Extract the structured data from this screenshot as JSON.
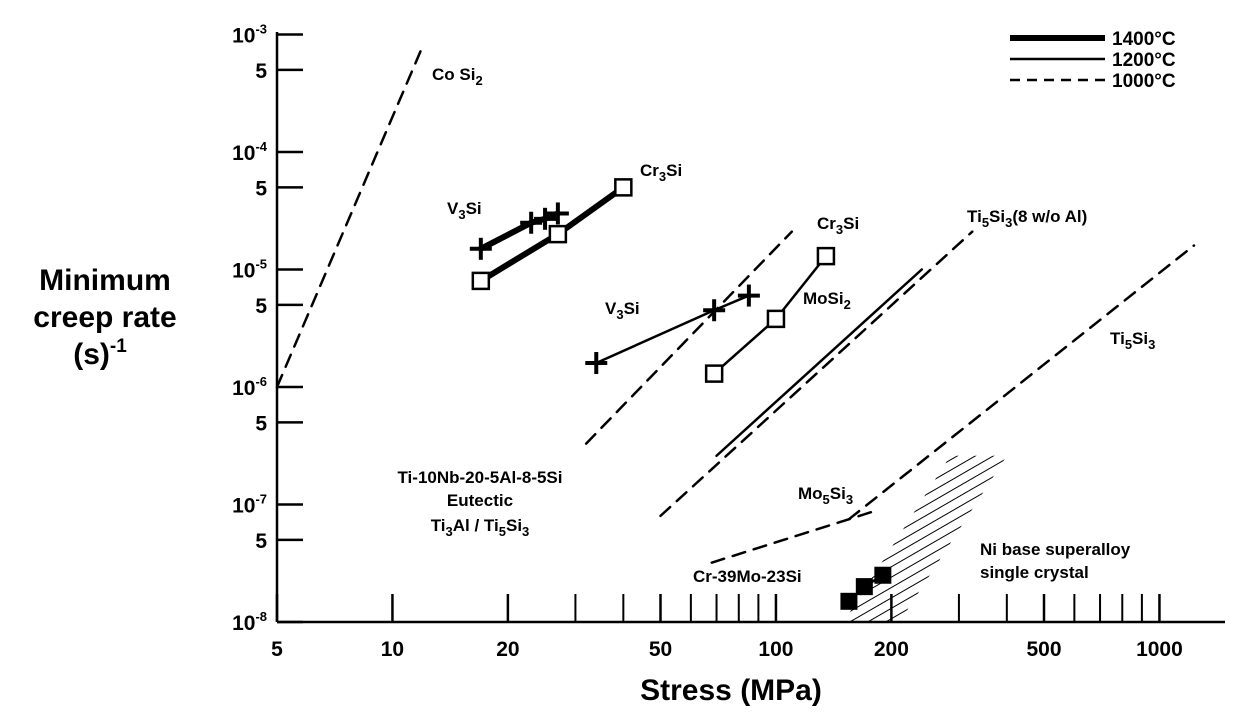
{
  "chart_data": {
    "type": "line",
    "xlabel": "Stress (MPa)",
    "ylabel_lines": [
      "Minimum",
      "creep rate",
      "(s)"
    ],
    "ylabel_sup": "-1",
    "xscale": "log",
    "yscale": "log",
    "xlim": [
      5,
      1500
    ],
    "ylim": [
      1e-08,
      0.001
    ],
    "x_ticks_major": [
      5,
      10,
      20,
      50,
      100,
      200,
      500,
      1000
    ],
    "x_ticks_minor": [
      30,
      40,
      60,
      70,
      80,
      90,
      300,
      400,
      600,
      700,
      800,
      900
    ],
    "x_tick_labels": [
      "5",
      "10",
      "20",
      "50",
      "100",
      "200",
      "500",
      "1000"
    ],
    "y_ticks": [
      {
        "value": 0.001,
        "base": "10",
        "exp": "-3"
      },
      {
        "value": 0.0005,
        "base": "5",
        "exp": ""
      },
      {
        "value": 0.0001,
        "base": "10",
        "exp": "-4"
      },
      {
        "value": 5e-05,
        "base": "5",
        "exp": ""
      },
      {
        "value": 1e-05,
        "base": "10",
        "exp": "-5"
      },
      {
        "value": 5e-06,
        "base": "5",
        "exp": ""
      },
      {
        "value": 1e-06,
        "base": "10",
        "exp": "-6"
      },
      {
        "value": 5e-07,
        "base": "5",
        "exp": ""
      },
      {
        "value": 1e-07,
        "base": "10",
        "exp": "-7"
      },
      {
        "value": 5e-08,
        "base": "5",
        "exp": ""
      },
      {
        "value": 1e-08,
        "base": "10",
        "exp": "-8"
      }
    ],
    "legend": {
      "position": "top-right",
      "entries": [
        {
          "label": "1400°C",
          "style": "thick"
        },
        {
          "label": "1200°C",
          "style": "solid"
        },
        {
          "label": "1000°C",
          "style": "dashed"
        }
      ]
    },
    "series": [
      {
        "label": "CoSi2",
        "temp": "1000°C",
        "style": "dashed",
        "marker": "none",
        "points": [
          [
            5,
            1e-06
          ],
          [
            12,
            0.0008
          ]
        ]
      },
      {
        "label": "V3Si",
        "temp": "1400°C",
        "style": "thick",
        "marker": "plus",
        "points": [
          [
            17,
            1.5e-05
          ],
          [
            23,
            2.5e-05
          ],
          [
            25,
            2.7e-05
          ],
          [
            27,
            3e-05
          ]
        ]
      },
      {
        "label": "Cr3Si",
        "temp": "1400°C",
        "style": "thick",
        "marker": "square",
        "points": [
          [
            17,
            8e-06
          ],
          [
            27,
            2e-05
          ],
          [
            40,
            5e-05
          ]
        ]
      },
      {
        "label": "V3Si",
        "temp": "1200°C",
        "style": "solid",
        "marker": "plus",
        "points": [
          [
            34,
            1.6e-06
          ],
          [
            69,
            4.5e-06
          ],
          [
            85,
            6e-06
          ]
        ]
      },
      {
        "label": "Cr3Si",
        "temp": "1200°C",
        "style": "solid",
        "marker": "square",
        "points": [
          [
            69,
            1.3e-06
          ],
          [
            100,
            3.8e-06
          ],
          [
            135,
            1.3e-05
          ]
        ]
      },
      {
        "label": "Ti-10Nb-20-5Al-8-5Si Eutectic Ti3Al / Ti5Si3",
        "temp": "1000°C",
        "style": "dashed",
        "marker": "none",
        "points": [
          [
            32,
            3.3e-07
          ],
          [
            110,
            2.1e-05
          ]
        ]
      },
      {
        "label": "MoSi2",
        "temp": "1200°C",
        "style": "solid",
        "marker": "none",
        "points": [
          [
            70,
            2.6e-07
          ],
          [
            240,
            1e-05
          ]
        ]
      },
      {
        "label": "Ti5Si3(8 w/o Al)",
        "temp": "1000°C",
        "style": "dashed",
        "marker": "none",
        "points": [
          [
            50,
            8e-08
          ],
          [
            325,
            2.1e-05
          ]
        ]
      },
      {
        "label": "Ti5Si3",
        "temp": "1000°C",
        "style": "dashed",
        "marker": "none",
        "points": [
          [
            155,
            7.5e-08
          ],
          [
            1230,
            1.6e-05
          ]
        ]
      },
      {
        "label": "Mo5Si3",
        "temp": "1000°C",
        "style": "dashed",
        "marker": "none",
        "points": [
          [
            68,
            3.2e-08
          ],
          [
            185,
            9e-08
          ]
        ]
      },
      {
        "label": "Cr-39Mo-23Si",
        "temp": "1200°C",
        "style": "solid",
        "marker": "filled-square",
        "points": [
          [
            155,
            1.5e-08
          ],
          [
            170,
            2e-08
          ],
          [
            190,
            2.5e-08
          ]
        ]
      }
    ],
    "region": {
      "label_lines": [
        "Ni base superalloy",
        "single crystal"
      ],
      "pattern": "hatched",
      "polygon": [
        [
          150,
          1e-08
        ],
        [
          210,
          1e-08
        ],
        [
          400,
          2.6e-07
        ],
        [
          285,
          2.6e-07
        ]
      ]
    }
  }
}
